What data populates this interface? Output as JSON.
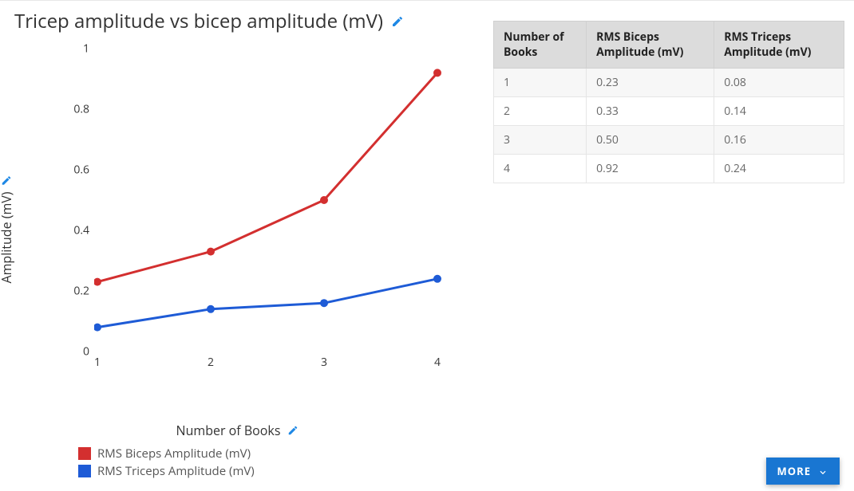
{
  "chart": {
    "title": "Tricep amplitude vs bicep amplitude (mV)",
    "type": "line",
    "xlabel": "Number of Books",
    "ylabel": "Amplitude (mV)",
    "xlim": [
      1,
      4
    ],
    "ylim": [
      0,
      1
    ],
    "ytick_step": 0.2,
    "yticks": [
      "0",
      "0.2",
      "0.4",
      "0.6",
      "0.8",
      "1"
    ],
    "xticks": [
      "1",
      "2",
      "3",
      "4"
    ],
    "background_color": "#ffffff",
    "grid_on": false,
    "title_fontsize": 24,
    "label_fontsize": 16,
    "tick_fontsize": 14,
    "line_width": 3,
    "marker_radius": 5,
    "marker_style": "circle",
    "series": [
      {
        "name": "RMS Biceps Amplitude (mV)",
        "color": "#d32f2f",
        "x": [
          1,
          2,
          3,
          4
        ],
        "y": [
          0.23,
          0.33,
          0.5,
          0.92
        ]
      },
      {
        "name": "RMS Triceps Amplitude (mV)",
        "color": "#1e5bd6",
        "x": [
          1,
          2,
          3,
          4
        ],
        "y": [
          0.08,
          0.14,
          0.16,
          0.24
        ]
      }
    ],
    "legend_position": "bottom-left"
  },
  "icons": {
    "pencil_color": "#1e88e5",
    "more_button_bg": "#1976d2",
    "more_button_text": "MORE"
  },
  "table": {
    "columns": [
      "Number of Books",
      "RMS Biceps Amplitude (mV)",
      "RMS Triceps Amplitude (mV)"
    ],
    "header_bg": "#dcdcdc",
    "border_color": "#e5e5e5",
    "dashed_divider_color": "#cccccc",
    "rows": [
      [
        "1",
        "0.23",
        "0.08"
      ],
      [
        "2",
        "0.33",
        "0.14"
      ],
      [
        "3",
        "0.50",
        "0.16"
      ],
      [
        "4",
        "0.92",
        "0.24"
      ]
    ]
  }
}
